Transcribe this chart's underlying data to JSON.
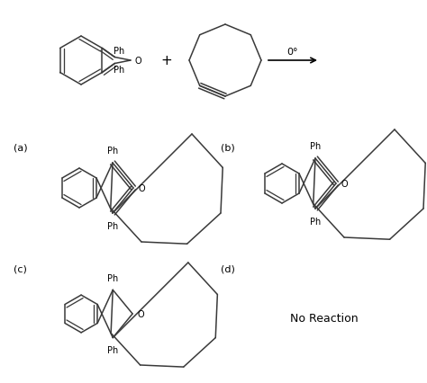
{
  "bg_color": "#ffffff",
  "line_color": "#3a3a3a",
  "text_color": "#000000",
  "fig_width": 4.74,
  "fig_height": 4.27,
  "dpi": 100,
  "lw": 1.1,
  "labels": {
    "a": "(a)",
    "b": "(b)",
    "c": "(c)",
    "d": "(d)",
    "plus": "+",
    "condition": "0°",
    "no_reaction": "No Reaction",
    "Ph": "Ph",
    "O": "O"
  }
}
